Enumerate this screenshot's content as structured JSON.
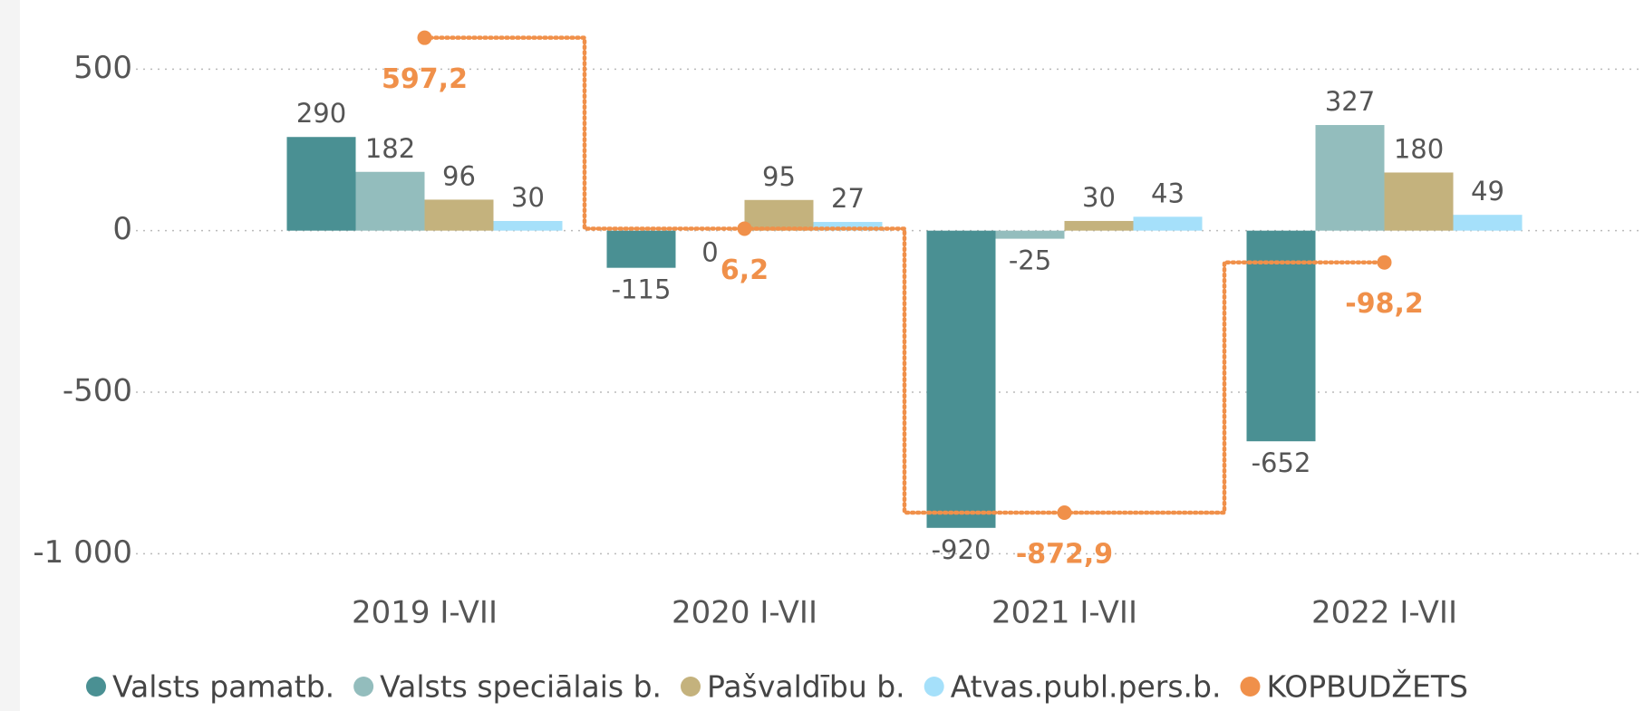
{
  "chart_data": {
    "type": "bar",
    "categories": [
      "2019 I-VII",
      "2020 I-VII",
      "2021 I-VII",
      "2022 I-VII"
    ],
    "series": [
      {
        "name": "Valsts pamatb.",
        "color": "#4a9093",
        "values": [
          290,
          -115,
          -920,
          -652
        ]
      },
      {
        "name": "Valsts speciālais b.",
        "color": "#93bdbd",
        "values": [
          182,
          0,
          -25,
          327
        ]
      },
      {
        "name": "Pašvaldību b.",
        "color": "#c4b27d",
        "values": [
          96,
          95,
          30,
          180
        ]
      },
      {
        "name": "Atvas.publ.pers.b.",
        "color": "#a5e0fa",
        "values": [
          30,
          27,
          43,
          49
        ]
      },
      {
        "name": "KOPBUDŽETS",
        "color": "#f0904a",
        "type": "step",
        "values": [
          597.2,
          6.2,
          -872.9,
          -98.2
        ],
        "value_labels": [
          "597,2",
          "6,2",
          "-872,9",
          "-98,2"
        ]
      }
    ],
    "ylim": [
      -1100,
      700
    ],
    "yticks": [
      500,
      0,
      -500,
      {
        "value": -1000,
        "label": "-1 000"
      }
    ],
    "grid": true,
    "legend": "bottom"
  }
}
